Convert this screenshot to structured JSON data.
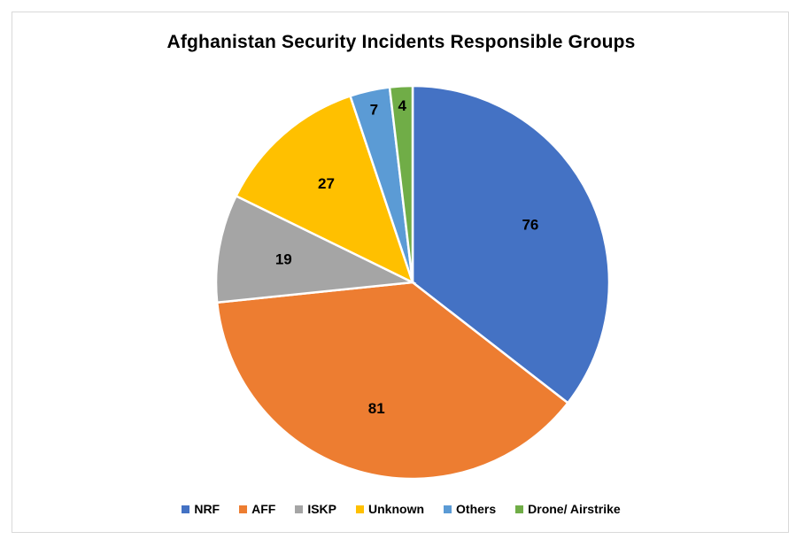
{
  "chart_data": {
    "type": "pie",
    "title": "Afghanistan Security Incidents Responsible Groups",
    "categories": [
      "NRF",
      "AFF",
      "ISKP",
      "Unknown",
      "Others",
      "Drone/ Airstrike"
    ],
    "values": [
      76,
      81,
      19,
      27,
      7,
      4
    ],
    "colors": [
      "#4472C4",
      "#ED7D31",
      "#A5A5A5",
      "#FFC000",
      "#5B9BD5",
      "#70AD47"
    ],
    "legend_position": "bottom",
    "data_labels": true
  }
}
